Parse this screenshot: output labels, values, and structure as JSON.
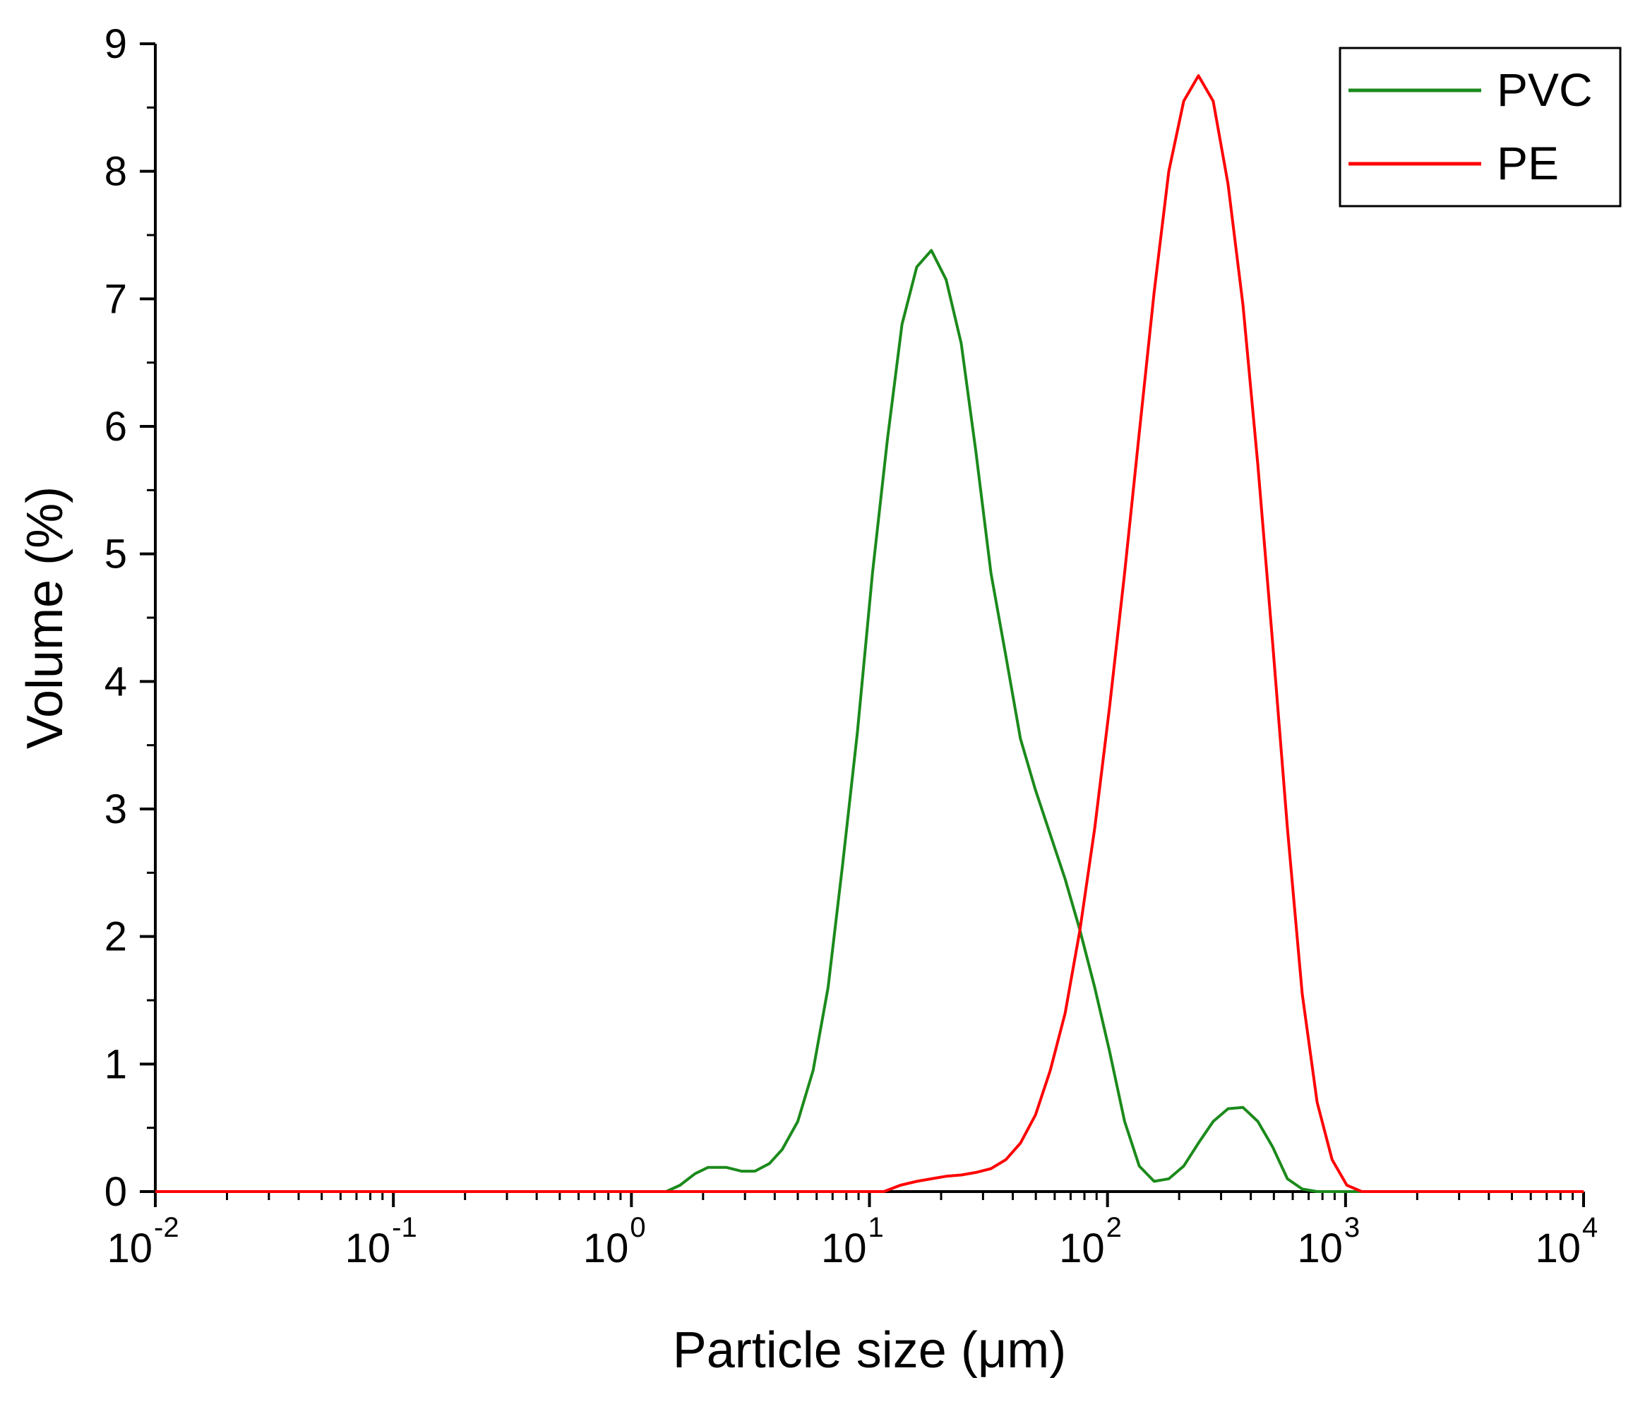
{
  "chart_data": {
    "type": "line",
    "xlabel": "Particle size (μm)",
    "ylabel": "Volume (%)",
    "x_scale": "log",
    "xlim": [
      0.01,
      10000
    ],
    "ylim": [
      0,
      9
    ],
    "x_ticks": [
      {
        "base": "10",
        "exp": "-2"
      },
      {
        "base": "10",
        "exp": "-1"
      },
      {
        "base": "10",
        "exp": "0"
      },
      {
        "base": "10",
        "exp": "1"
      },
      {
        "base": "10",
        "exp": "2"
      },
      {
        "base": "10",
        "exp": "3"
      },
      {
        "base": "10",
        "exp": "4"
      }
    ],
    "y_ticks": [
      "0",
      "1",
      "2",
      "3",
      "4",
      "5",
      "6",
      "7",
      "8",
      "9"
    ],
    "grid": false,
    "legend_position": "top-right",
    "series": [
      {
        "name": "PVC",
        "color": "#1b8a1b",
        "x": [
          0.01,
          1.4,
          1.6,
          1.85,
          2.1,
          2.5,
          2.9,
          3.3,
          3.8,
          4.3,
          5.0,
          5.8,
          6.7,
          7.7,
          8.9,
          10.3,
          11.9,
          13.7,
          15.8,
          18.2,
          21.0,
          24.3,
          28.0,
          32.4,
          37.4,
          43.1,
          49.8,
          57.5,
          66.4,
          76.6,
          88.4,
          102,
          118,
          136,
          157,
          181,
          209,
          241,
          278,
          321,
          371,
          428,
          494,
          570,
          658,
          760,
          10000
        ],
        "y": [
          0,
          0,
          0.05,
          0.14,
          0.19,
          0.19,
          0.16,
          0.16,
          0.22,
          0.33,
          0.55,
          0.95,
          1.6,
          2.55,
          3.6,
          4.85,
          5.9,
          6.8,
          7.25,
          7.38,
          7.15,
          6.65,
          5.8,
          4.85,
          4.2,
          3.55,
          3.15,
          2.8,
          2.45,
          2.05,
          1.6,
          1.1,
          0.55,
          0.2,
          0.08,
          0.1,
          0.2,
          0.38,
          0.55,
          0.65,
          0.66,
          0.55,
          0.35,
          0.1,
          0.02,
          0,
          0
        ]
      },
      {
        "name": "PE",
        "color": "#ff0000",
        "x": [
          0.01,
          11.5,
          13.5,
          15.8,
          18.2,
          21.0,
          24.3,
          28.0,
          32.4,
          37.4,
          43.1,
          49.8,
          57.5,
          66.4,
          76.6,
          88.4,
          102,
          118,
          136,
          157,
          181,
          209,
          241,
          278,
          321,
          371,
          428,
          494,
          570,
          658,
          760,
          878,
          1013,
          1170,
          1250,
          10000
        ],
        "y": [
          0,
          0,
          0.05,
          0.08,
          0.1,
          0.12,
          0.13,
          0.15,
          0.18,
          0.25,
          0.38,
          0.6,
          0.95,
          1.4,
          2.05,
          2.85,
          3.8,
          4.85,
          5.95,
          7.05,
          8.0,
          8.55,
          8.75,
          8.55,
          7.9,
          6.95,
          5.7,
          4.3,
          2.85,
          1.55,
          0.7,
          0.25,
          0.05,
          0,
          0,
          0
        ]
      }
    ]
  }
}
